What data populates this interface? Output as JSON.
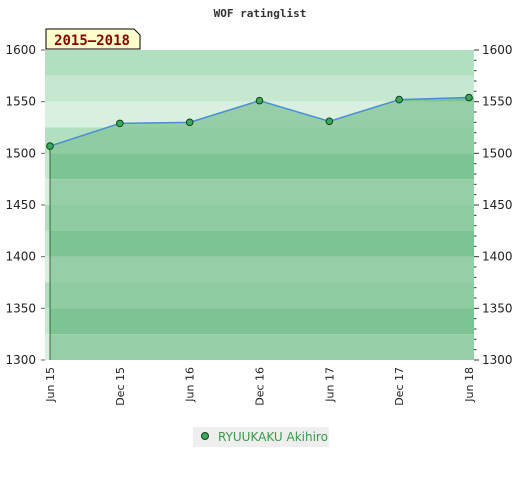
{
  "chart_data": {
    "type": "area",
    "title": "WOF ratinglist",
    "period_label": "2015–2018",
    "x": [
      "Jun 15",
      "Dec 15",
      "Jun 16",
      "Dec 16",
      "Jun 17",
      "Dec 17",
      "Jun 18"
    ],
    "series": [
      {
        "name": "RYUUKAKU Akihiro",
        "values": [
          1507,
          1529,
          1530,
          1551,
          1531,
          1552,
          1554
        ]
      }
    ],
    "ylim": [
      1300,
      1600
    ],
    "yticks": [
      1300,
      1350,
      1400,
      1450,
      1500,
      1550,
      1600
    ],
    "grid": false,
    "legend": "bottom",
    "colors": {
      "line": "#4a8fd4",
      "point_fill": "#3aa860",
      "point_stroke": "#114411",
      "area_fill": "#7cc494",
      "period_bg": "#ffffcc"
    }
  }
}
